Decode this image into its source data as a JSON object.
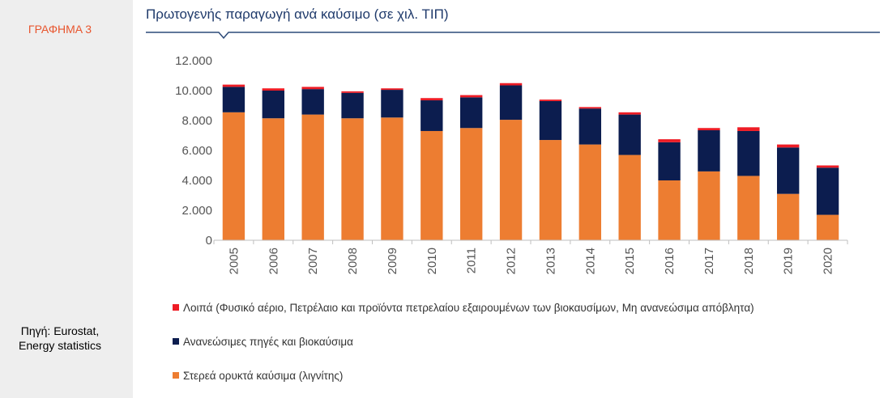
{
  "figure_label": "ΓΡΑΦΗΜΑ 3",
  "source_line1": "Πηγή: Eurostat,",
  "source_line2": "Energy statistics",
  "chart_data": {
    "type": "bar",
    "stacked": true,
    "title": "Πρωτογενής παραγωγή ανά καύσιμο (σε χιλ. ΤΙΠ)",
    "categories": [
      "2005",
      "2006",
      "2007",
      "2008",
      "2009",
      "2010",
      "2011",
      "2012",
      "2013",
      "2014",
      "2015",
      "2016",
      "2017",
      "2018",
      "2019",
      "2020"
    ],
    "series": [
      {
        "name": "Στερεά ορυκτά καύσιμα (λιγνίτης)",
        "color": "#ed7d31",
        "values": [
          8550,
          8150,
          8400,
          8150,
          8200,
          7300,
          7500,
          8050,
          6700,
          6400,
          5700,
          4000,
          4600,
          4300,
          3100,
          1700
        ]
      },
      {
        "name": "Ανανεώσιμες πηγές και βιοκαύσιμα",
        "color": "#0c1d4f",
        "values": [
          1700,
          1850,
          1700,
          1700,
          1850,
          2050,
          2050,
          2300,
          2600,
          2400,
          2700,
          2550,
          2750,
          3000,
          3100,
          3150
        ]
      },
      {
        "name": "Λοιπά (Φυσικό αέριο, Πετρέλαιο και προϊόντα πετρελαίου εξαιρουμένων των βιοκαυσίμων, Μη ανανεώσιμα απόβλητα)",
        "color": "#ee1c25",
        "values": [
          150,
          150,
          150,
          100,
          100,
          150,
          150,
          150,
          100,
          100,
          150,
          200,
          150,
          250,
          200,
          150
        ]
      }
    ],
    "legend_order": [
      2,
      1,
      0
    ],
    "ylim": [
      0,
      12000
    ],
    "yticks": [
      "0",
      "2.000",
      "4.000",
      "6.000",
      "8.000",
      "10.000",
      "12.000"
    ],
    "ytick_values": [
      0,
      2000,
      4000,
      6000,
      8000,
      10000,
      12000
    ],
    "grid": false,
    "legend_position": "bottom"
  }
}
